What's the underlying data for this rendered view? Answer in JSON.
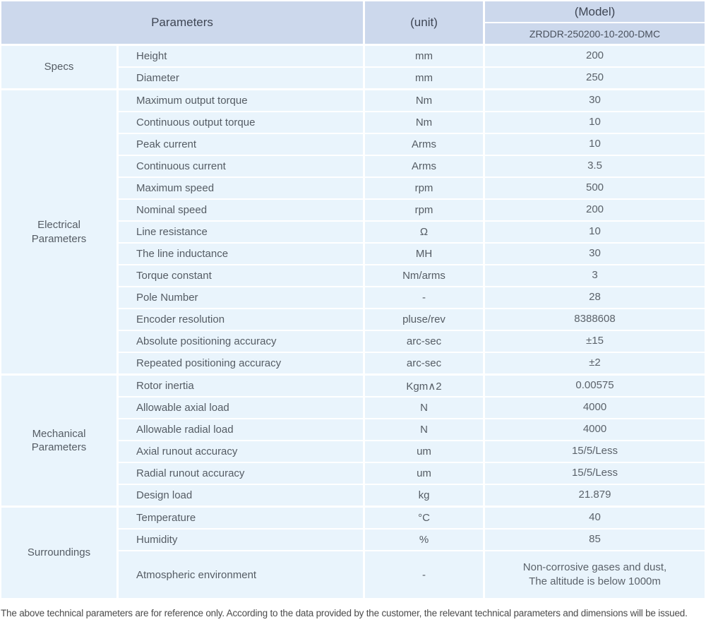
{
  "header": {
    "parameters": "Parameters",
    "unit": "(unit)",
    "model": "(Model)",
    "model_number": "ZRDDR-250200-10-200-DMC"
  },
  "sections": [
    {
      "label": "Specs",
      "rows": [
        {
          "param": "Height",
          "unit": "mm",
          "value": "200"
        },
        {
          "param": "Diameter",
          "unit": "mm",
          "value": "250"
        }
      ]
    },
    {
      "label": "Electrical\nParameters",
      "rows": [
        {
          "param": "Maximum output torque",
          "unit": "Nm",
          "value": "30"
        },
        {
          "param": "Continuous output torque",
          "unit": "Nm",
          "value": "10"
        },
        {
          "param": "Peak current",
          "unit": "Arms",
          "value": "10"
        },
        {
          "param": "Continuous current",
          "unit": "Arms",
          "value": "3.5"
        },
        {
          "param": "Maximum speed",
          "unit": "rpm",
          "value": "500"
        },
        {
          "param": "Nominal speed",
          "unit": "rpm",
          "value": "200"
        },
        {
          "param": "Line resistance",
          "unit": "Ω",
          "value": "10"
        },
        {
          "param": "The line inductance",
          "unit": "MH",
          "value": "30"
        },
        {
          "param": "Torque constant",
          "unit": "Nm/arms",
          "value": "3"
        },
        {
          "param": "Pole Number",
          "unit": "-",
          "value": "28"
        },
        {
          "param": "Encoder resolution",
          "unit": "pluse/rev",
          "value": "8388608"
        },
        {
          "param": "Absolute positioning accuracy",
          "unit": "arc-sec",
          "value": "±15"
        },
        {
          "param": "Repeated positioning accuracy",
          "unit": "arc-sec",
          "value": "±2"
        }
      ]
    },
    {
      "label": "Mechanical\nParameters",
      "rows": [
        {
          "param": "Rotor inertia",
          "unit": "Kgm∧2",
          "value": "0.00575"
        },
        {
          "param": "Allowable axial load",
          "unit": "N",
          "value": "4000"
        },
        {
          "param": "Allowable radial load",
          "unit": "N",
          "value": "4000"
        },
        {
          "param": "Axial runout accuracy",
          "unit": "um",
          "value": "15/5/Less"
        },
        {
          "param": "Radial runout accuracy",
          "unit": "um",
          "value": "15/5/Less"
        },
        {
          "param": "Design load",
          "unit": "kg",
          "value": "21.879"
        }
      ]
    },
    {
      "label": "Surroundings",
      "rows": [
        {
          "param": "Temperature",
          "unit": "°C",
          "value": "40"
        },
        {
          "param": "Humidity",
          "unit": "%",
          "value": "85"
        },
        {
          "param": "Atmospheric environment",
          "unit": "-",
          "value": "Non-corrosive gases and dust,\nThe altitude is below 1000m",
          "tall": true
        }
      ]
    }
  ],
  "footer": {
    "note": "The above technical parameters are for reference only. According to the data provided by the customer, the relevant technical parameters and dimensions will be issued."
  },
  "colors": {
    "header_bg": "#ccd8ec",
    "row_bg": "#e9f4fc",
    "header_text": "#3f4654",
    "text": "#555c64"
  }
}
